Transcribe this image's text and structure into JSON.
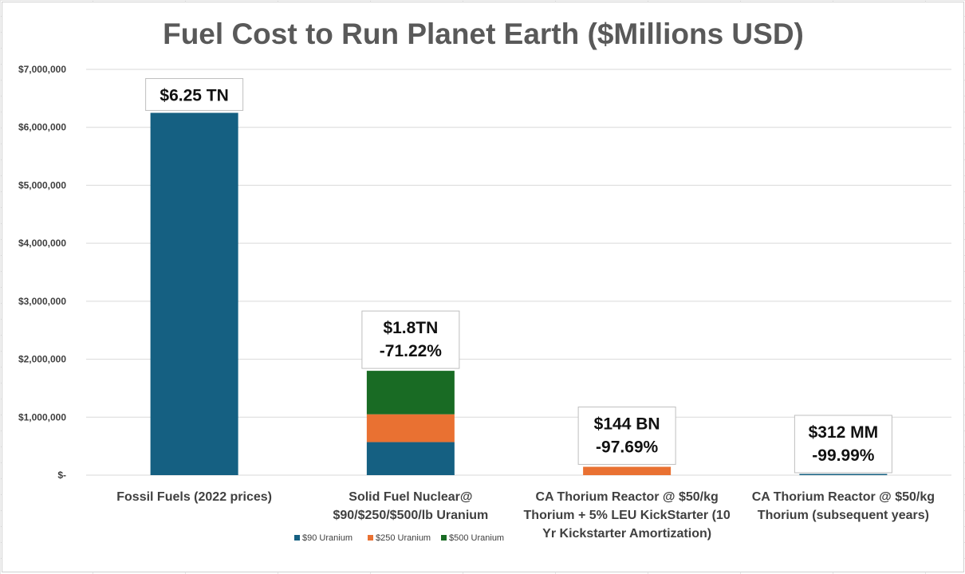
{
  "chart_data": {
    "type": "bar",
    "stacked": true,
    "title": "Fuel Cost to Run Planet Earth ($Millions USD)",
    "xlabel": "",
    "ylabel": "",
    "ylim": [
      0,
      7000000
    ],
    "yticks": [
      0,
      1000000,
      2000000,
      3000000,
      4000000,
      5000000,
      6000000,
      7000000
    ],
    "ytick_labels": [
      "$-",
      "$1,000,000",
      "$2,000,000",
      "$3,000,000",
      "$4,000,000",
      "$5,000,000",
      "$6,000,000",
      "$7,000,000"
    ],
    "grid": true,
    "legend_position": "bottom",
    "categories": [
      [
        "Fossil Fuels (2022 prices)"
      ],
      [
        "Solid Fuel Nuclear@",
        "$90/$250/$500/lb Uranium"
      ],
      [
        "CA Thorium Reactor @ $50/kg",
        "Thorium + 5% LEU KickStarter (10",
        "Yr Kickstarter Amortization)"
      ],
      [
        "CA Thorium Reactor @ $50/kg",
        "Thorium (subsequent years)"
      ]
    ],
    "series": [
      {
        "name": "$90 Uranium",
        "color": "#156082",
        "values": [
          6250000,
          570000,
          0,
          312
        ]
      },
      {
        "name": "$250 Uranium",
        "color": "#E97132",
        "values": [
          0,
          480000,
          144000,
          0
        ]
      },
      {
        "name": "$500 Uranium",
        "color": "#196B24",
        "values": [
          0,
          750000,
          0,
          0
        ]
      }
    ],
    "annotations": [
      [
        "$6.25 TN"
      ],
      [
        "$1.8TN",
        "-71.22%"
      ],
      [
        "$144 BN",
        "-97.69%"
      ],
      [
        "$312 MM",
        "-99.99%"
      ]
    ]
  }
}
